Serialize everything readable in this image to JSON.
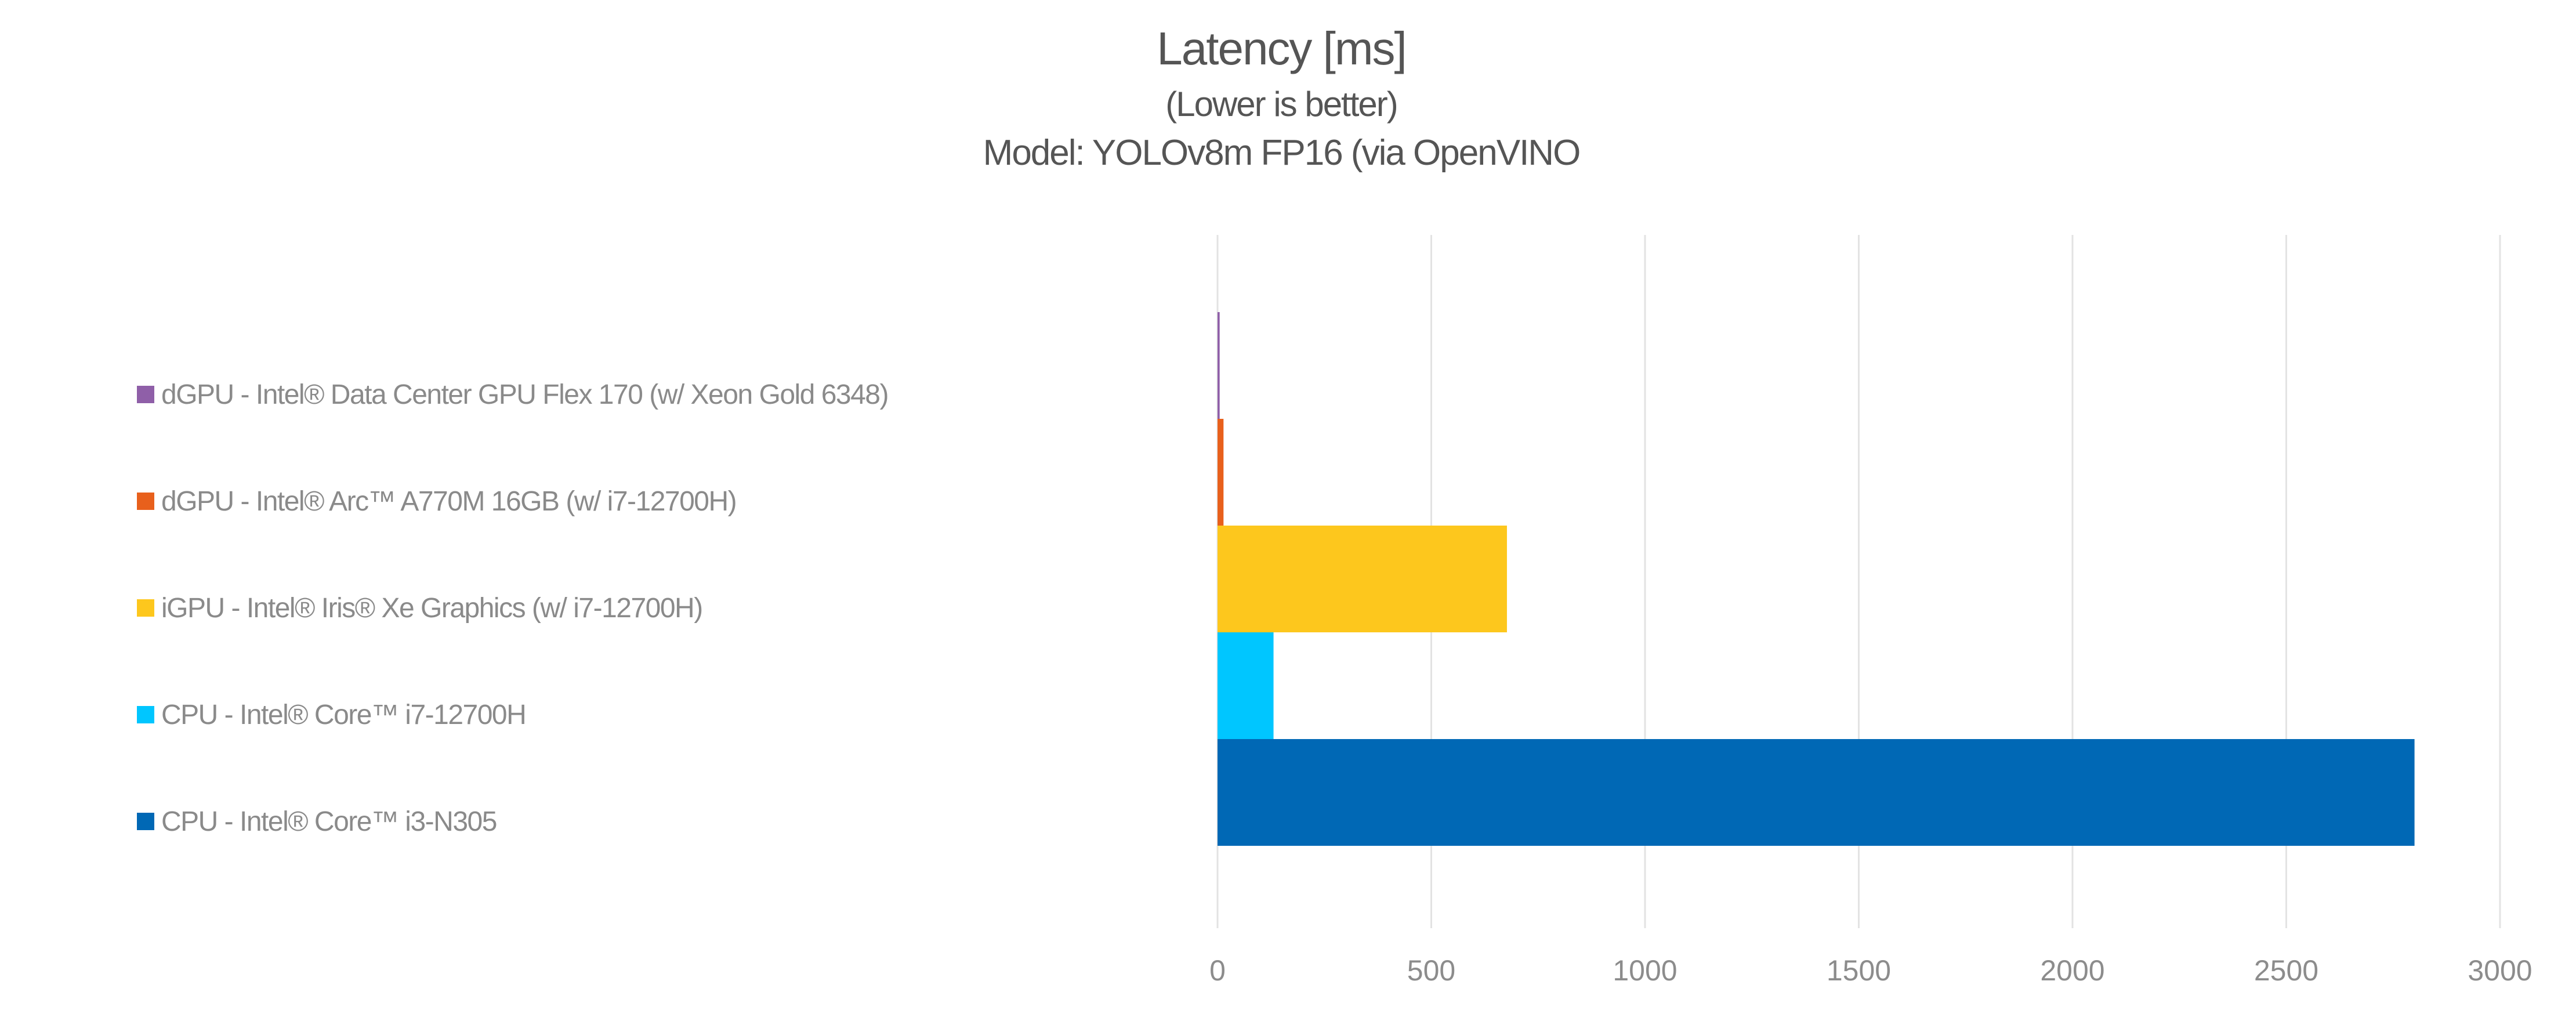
{
  "chart_data": {
    "type": "bar",
    "orientation": "horizontal",
    "title": "Latency [ms]",
    "subtitle": "(Lower is better)",
    "subtitle2": "Model: YOLOv8m FP16 (via OpenVINO",
    "xlabel": "",
    "ylabel": "",
    "xlim": [
      0,
      3000
    ],
    "xticks": [
      0,
      500,
      1000,
      1500,
      2000,
      2500,
      3000
    ],
    "grid": true,
    "legend_position": "left",
    "series": [
      {
        "name": "dGPU - Intel® Data Center GPU Flex 170 (w/ Xeon Gold 6348)",
        "value": 5,
        "color": "#8f5fa8"
      },
      {
        "name": "dGPU - Intel® Arc™ A770M 16GB (w/ i7-12700H)",
        "value": 14,
        "color": "#e8601c"
      },
      {
        "name": "iGPU - Intel® Iris® Xe Graphics (w/ i7-12700H)",
        "value": 677,
        "color": "#fdc71d"
      },
      {
        "name": "CPU - Intel® Core™ i7-12700H",
        "value": 131,
        "color": "#00c6ff"
      },
      {
        "name": "CPU - Intel® Core™ i3-N305",
        "value": 2800,
        "color": "#0068b5"
      }
    ]
  }
}
